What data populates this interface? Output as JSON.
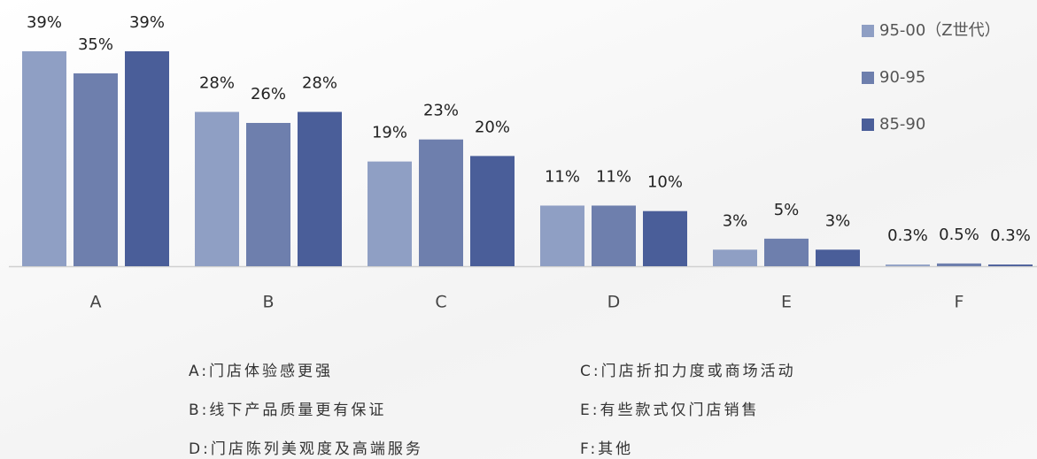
{
  "chart_data": {
    "type": "bar",
    "categories": [
      "A",
      "B",
      "C",
      "D",
      "E",
      "F"
    ],
    "series": [
      {
        "name": "95-00（Z世代）",
        "color": "#8f9fc4",
        "values": [
          39,
          28,
          19,
          11,
          3,
          0.3
        ],
        "value_labels": [
          "39%",
          "28%",
          "19%",
          "11%",
          "3%",
          "0.3%"
        ]
      },
      {
        "name": "90-95",
        "color": "#6e7fad",
        "values": [
          35,
          26,
          23,
          11,
          5,
          0.5
        ],
        "value_labels": [
          "35%",
          "26%",
          "23%",
          "11%",
          "5%",
          "0.5%"
        ]
      },
      {
        "name": "85-90",
        "color": "#4a5e99",
        "values": [
          39,
          28,
          20,
          10,
          3,
          0.3
        ],
        "value_labels": [
          "39%",
          "28%",
          "20%",
          "10%",
          "3%",
          "0.3%"
        ]
      }
    ],
    "legend": "top-right",
    "notes": [
      "A:门店体验感更强",
      "C:门店折扣力度或商场活动",
      "B:线下产品质量更有保证",
      "E:有些款式仅门店销售",
      "D:门店陈列美观度及高端服务",
      "F:其他"
    ]
  }
}
